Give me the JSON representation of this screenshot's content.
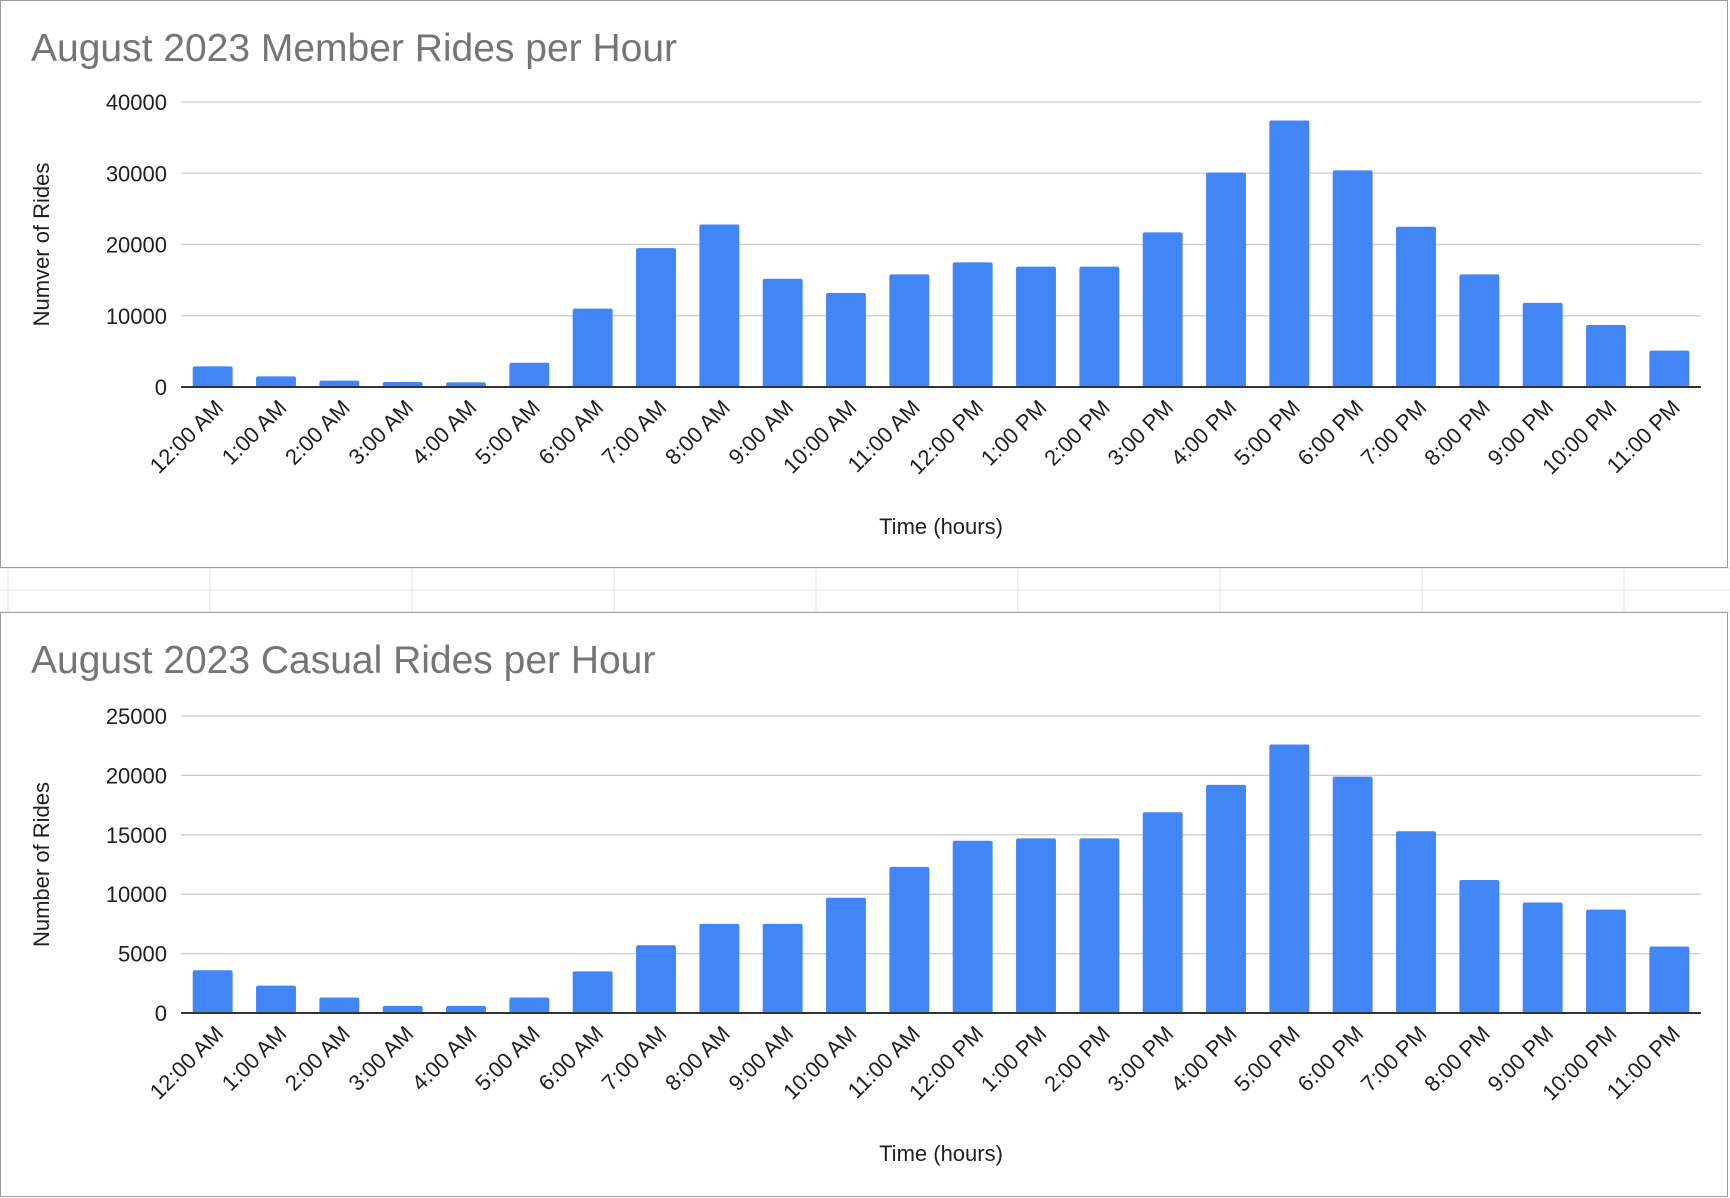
{
  "colors": {
    "bar": "#4285f4",
    "grid": "#cccccc",
    "axis": "#333333",
    "title": "#757575",
    "sheet_grid": "#e0e0e0"
  },
  "chart_data": [
    {
      "type": "bar",
      "title": "August 2023 Member Rides per Hour",
      "xlabel": "Time (hours)",
      "ylabel": "Numver of Rides",
      "ylim": [
        0,
        40000
      ],
      "yticks": [
        "0",
        "10000",
        "20000",
        "30000",
        "40000"
      ],
      "grid": true,
      "legend": "none",
      "categories": [
        "12:00 AM",
        "1:00 AM",
        "2:00 AM",
        "3:00 AM",
        "4:00 AM",
        "5:00 AM",
        "6:00 AM",
        "7:00 AM",
        "8:00 AM",
        "9:00 AM",
        "10:00 AM",
        "11:00 AM",
        "12:00 PM",
        "1:00 PM",
        "2:00 PM",
        "3:00 PM",
        "4:00 PM",
        "5:00 PM",
        "6:00 PM",
        "7:00 PM",
        "8:00 PM",
        "9:00 PM",
        "10:00 PM",
        "11:00 PM"
      ],
      "values": [
        2900,
        1500,
        900,
        700,
        650,
        3400,
        11000,
        19500,
        22800,
        15200,
        13200,
        15800,
        17500,
        16900,
        16900,
        21700,
        30100,
        37400,
        30400,
        22500,
        15800,
        11800,
        8700,
        5100
      ]
    },
    {
      "type": "bar",
      "title": "August 2023 Casual Rides per Hour",
      "xlabel": "Time (hours)",
      "ylabel": "Number of Rides",
      "ylim": [
        0,
        25000
      ],
      "yticks": [
        "0",
        "5000",
        "10000",
        "15000",
        "20000",
        "25000"
      ],
      "grid": true,
      "legend": "none",
      "categories": [
        "12:00 AM",
        "1:00 AM",
        "2:00 AM",
        "3:00 AM",
        "4:00 AM",
        "5:00 AM",
        "6:00 AM",
        "7:00 AM",
        "8:00 AM",
        "9:00 AM",
        "10:00 AM",
        "11:00 AM",
        "12:00 PM",
        "1:00 PM",
        "2:00 PM",
        "3:00 PM",
        "4:00 PM",
        "5:00 PM",
        "6:00 PM",
        "7:00 PM",
        "8:00 PM",
        "9:00 PM",
        "10:00 PM",
        "11:00 PM"
      ],
      "values": [
        3600,
        2300,
        1300,
        600,
        600,
        1300,
        3500,
        5700,
        7500,
        7500,
        9700,
        12300,
        14500,
        14700,
        14700,
        16900,
        19200,
        22600,
        19900,
        15300,
        11200,
        9300,
        8700,
        5600
      ]
    }
  ]
}
